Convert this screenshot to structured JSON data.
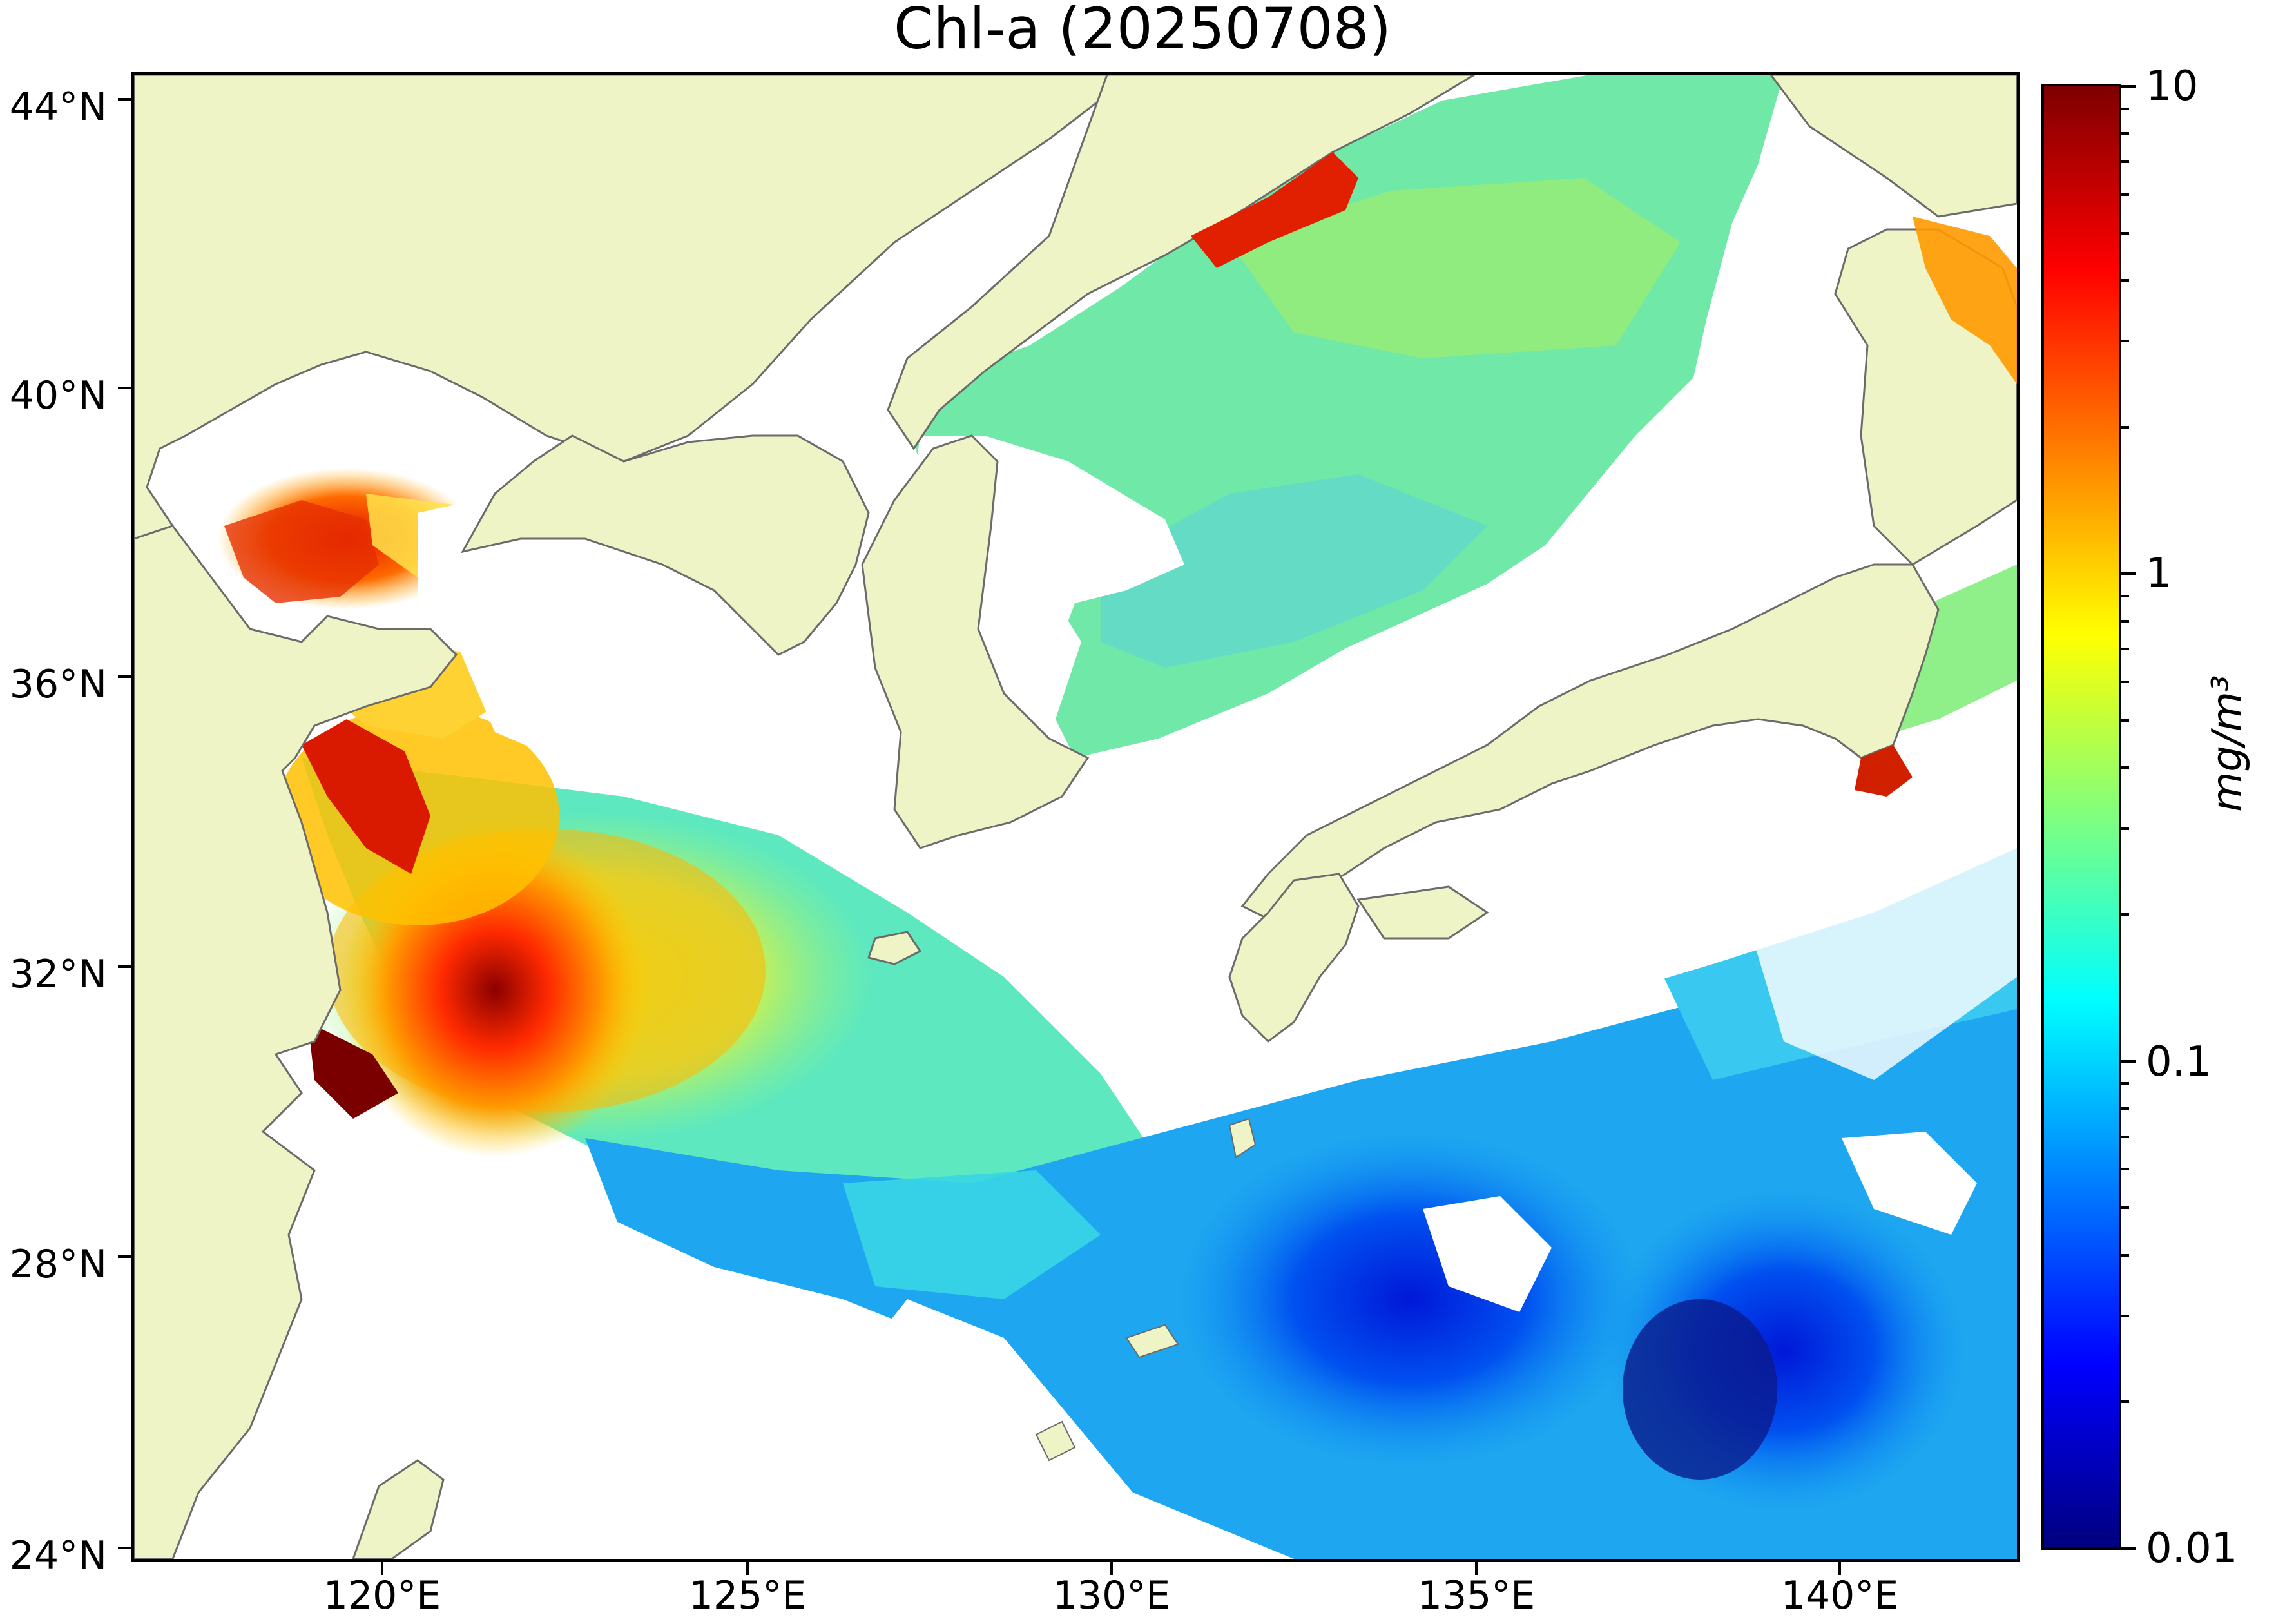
{
  "title": "Chl-a (20250708)",
  "colors": {
    "land": "#eff4c6",
    "cloud_nodata": "#ffffff",
    "coastline": "#6b6b6b",
    "colormap": [
      "#00007f",
      "#0000ff",
      "#007fff",
      "#00ffff",
      "#7fff7f",
      "#ffff00",
      "#ff7f00",
      "#ff0000",
      "#7f0000"
    ]
  },
  "axes": {
    "lat_labels": [
      "44°N",
      "40°N",
      "36°N",
      "32°N",
      "28°N",
      "24°N"
    ],
    "lon_labels": [
      "120°E",
      "125°E",
      "130°E",
      "135°E",
      "140°E"
    ]
  },
  "colorbar": {
    "scale": "log",
    "range": [
      0.01,
      10
    ],
    "tick_labels": [
      "10",
      "1",
      "0.1",
      "0.01"
    ],
    "unit": "mg/m³"
  }
}
